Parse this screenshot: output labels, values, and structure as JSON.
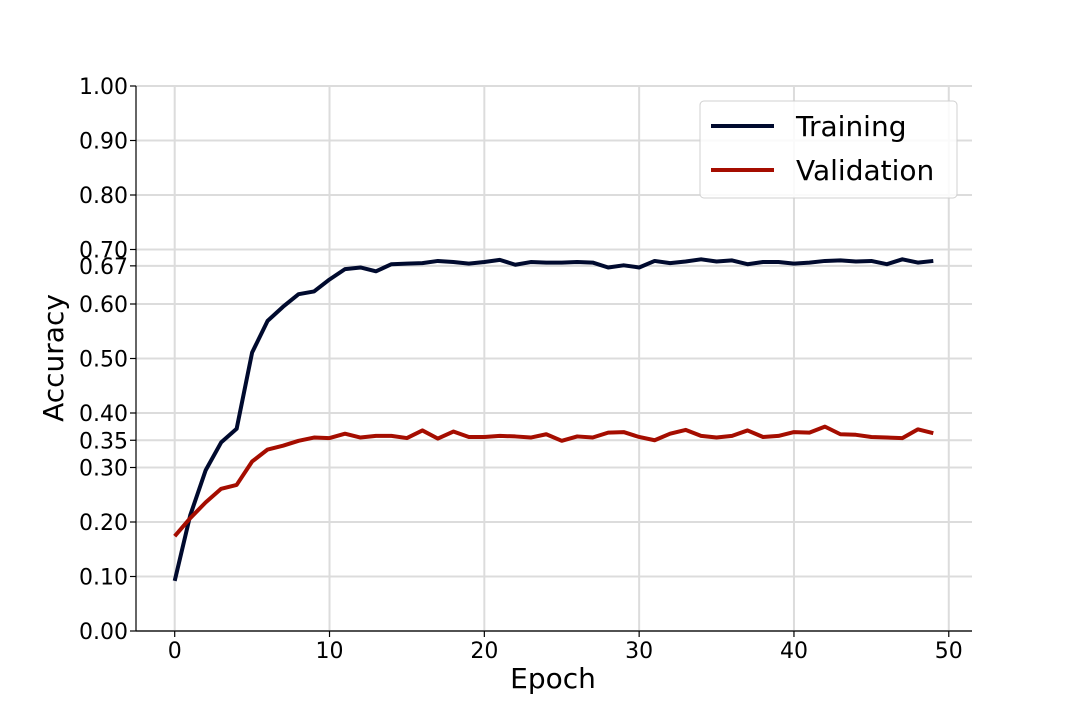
{
  "chart_data": {
    "type": "line",
    "xlabel": "Epoch",
    "ylabel": "Accuracy",
    "xlim": [
      -2.5,
      51.5
    ],
    "ylim": [
      0,
      1
    ],
    "xticks": [
      0,
      10,
      20,
      30,
      40,
      50
    ],
    "yticks": [
      0.0,
      0.1,
      0.2,
      0.3,
      0.35,
      0.4,
      0.5,
      0.6,
      0.67,
      0.7,
      0.8,
      0.9,
      1.0
    ],
    "ytick_labels": [
      "0.00",
      "0.10",
      "0.20",
      "0.30",
      "0.35",
      "0.40",
      "0.50",
      "0.60",
      "0.67",
      "0.70",
      "0.80",
      "0.90",
      "1.00"
    ],
    "grid": true,
    "legend": "top-right",
    "x": [
      0,
      1,
      2,
      3,
      4,
      5,
      6,
      7,
      8,
      9,
      10,
      11,
      12,
      13,
      14,
      15,
      16,
      17,
      18,
      19,
      20,
      21,
      22,
      23,
      24,
      25,
      26,
      27,
      28,
      29,
      30,
      31,
      32,
      33,
      34,
      35,
      36,
      37,
      38,
      39,
      40,
      41,
      42,
      43,
      44,
      45,
      46,
      47,
      48,
      49
    ],
    "series": [
      {
        "name": "Training",
        "color": "#000a2e",
        "values": [
          0.092,
          0.212,
          0.295,
          0.346,
          0.371,
          0.511,
          0.569,
          0.595,
          0.618,
          0.623,
          0.645,
          0.664,
          0.667,
          0.66,
          0.673,
          0.674,
          0.675,
          0.679,
          0.677,
          0.674,
          0.677,
          0.681,
          0.672,
          0.677,
          0.676,
          0.676,
          0.677,
          0.676,
          0.667,
          0.671,
          0.667,
          0.679,
          0.675,
          0.678,
          0.682,
          0.678,
          0.68,
          0.673,
          0.677,
          0.677,
          0.674,
          0.676,
          0.679,
          0.68,
          0.678,
          0.679,
          0.673,
          0.682,
          0.676,
          0.679
        ]
      },
      {
        "name": "Validation",
        "color": "#a50d00",
        "values": [
          0.174,
          0.207,
          0.236,
          0.261,
          0.268,
          0.311,
          0.333,
          0.34,
          0.349,
          0.355,
          0.354,
          0.362,
          0.355,
          0.358,
          0.358,
          0.354,
          0.368,
          0.353,
          0.366,
          0.356,
          0.356,
          0.358,
          0.357,
          0.355,
          0.361,
          0.349,
          0.357,
          0.355,
          0.364,
          0.365,
          0.356,
          0.35,
          0.362,
          0.369,
          0.358,
          0.355,
          0.358,
          0.368,
          0.356,
          0.358,
          0.365,
          0.364,
          0.375,
          0.361,
          0.36,
          0.356,
          0.355,
          0.354,
          0.37,
          0.363
        ]
      }
    ]
  }
}
